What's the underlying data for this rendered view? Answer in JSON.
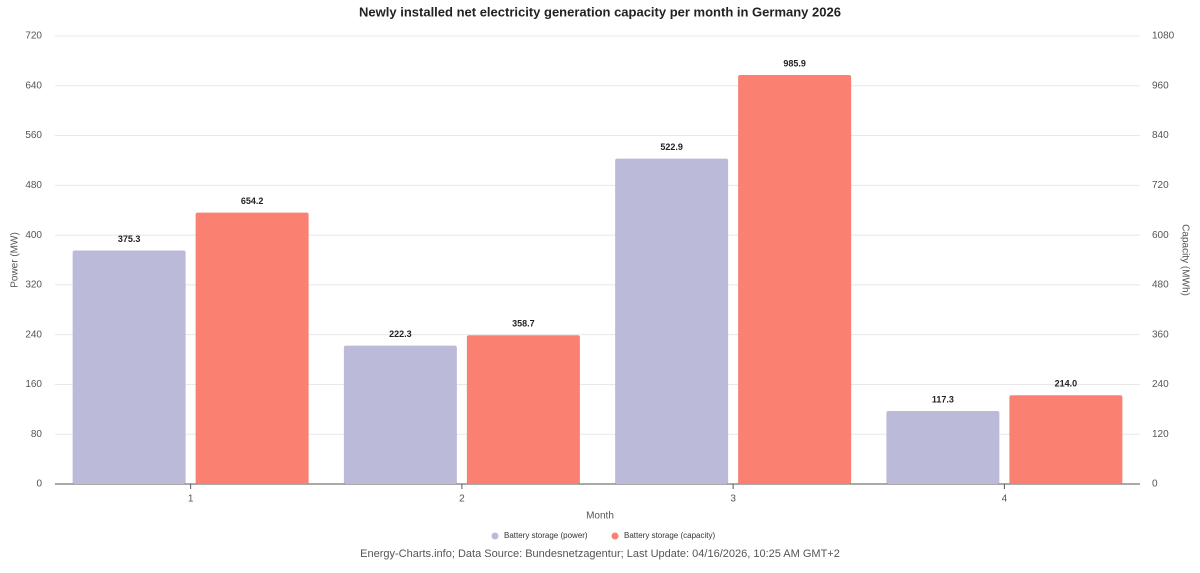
{
  "chart_data": {
    "type": "bar",
    "title": "Newly installed net electricity generation capacity per month in Germany 2026",
    "x_label": "Month",
    "y_label": "Power (MW)",
    "y2_label": "Capacity (MWh)",
    "categories": [
      "1",
      "2",
      "3",
      "4"
    ],
    "series": [
      {
        "name": "Battery storage (power)",
        "color": "#bcbad9",
        "values": [
          375.3,
          222.3,
          522.9,
          117.3
        ]
      },
      {
        "name": "Battery storage (capacity)",
        "color": "#fa8072",
        "axis": "y2",
        "values": [
          654.2,
          358.7,
          985.9,
          214
        ],
        "value_labels": [
          "654.2",
          "358.7",
          "985.9",
          "214.0"
        ]
      }
    ],
    "ylim": [
      0,
      720
    ],
    "yticks": [
      0,
      80,
      160,
      240,
      320,
      400,
      480,
      560,
      640,
      720
    ],
    "y2lim": [
      0,
      1080
    ],
    "y2ticks": [
      0,
      120,
      240,
      360,
      480,
      600,
      720,
      840,
      960,
      1080
    ],
    "grid": true,
    "footer": "Energy-Charts.info; Data Source: Bundesnetzagentur; Last Update: 04/16/2026, 10:25 AM GMT+2"
  }
}
